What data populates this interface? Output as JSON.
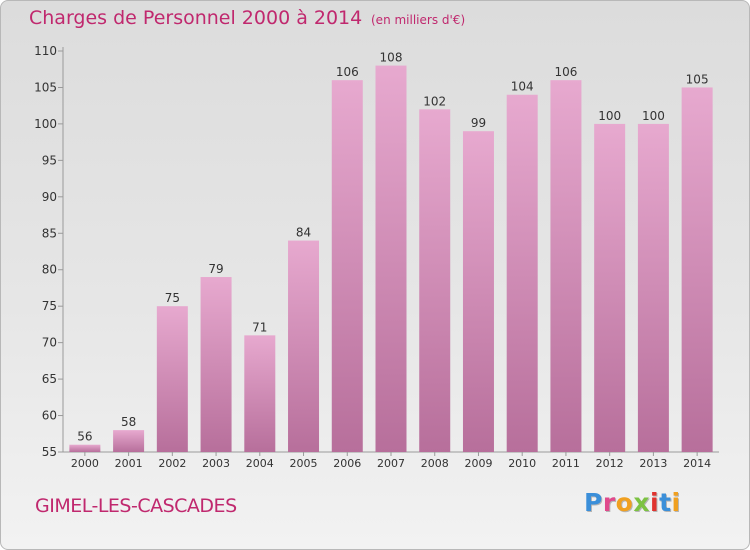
{
  "header": {
    "title": "Charges de Personnel 2000 à 2014",
    "unit": "(en milliers d'€)"
  },
  "footer": {
    "commune": "GIMEL-LES-CASCADES",
    "logo_letters": [
      "P",
      "r",
      "o",
      "x",
      "i",
      "t",
      "i"
    ],
    "logo_colors": [
      "#3b8fd9",
      "#e04a8c",
      "#f0a020",
      "#7cc242",
      "#e0332f",
      "#3b8fd9",
      "#f0a020"
    ]
  },
  "colors": {
    "bar_top": "#e7a9cf",
    "bar_bottom": "#b76f9b",
    "text": "#c0286e",
    "axis": "#9a9a9a"
  },
  "chart_data": {
    "type": "bar",
    "categories": [
      "2000",
      "2001",
      "2002",
      "2003",
      "2004",
      "2005",
      "2006",
      "2007",
      "2008",
      "2009",
      "2010",
      "2011",
      "2012",
      "2013",
      "2014"
    ],
    "values": [
      56,
      58,
      75,
      79,
      71,
      84,
      106,
      108,
      102,
      99,
      104,
      106,
      100,
      100,
      105
    ],
    "ylim": [
      55,
      110
    ],
    "yticks": [
      55,
      60,
      65,
      70,
      75,
      80,
      85,
      90,
      95,
      100,
      105,
      110
    ],
    "grid": false,
    "legend": "none",
    "title": "Charges de Personnel 2000 à 2014",
    "xlabel": "",
    "ylabel": ""
  }
}
